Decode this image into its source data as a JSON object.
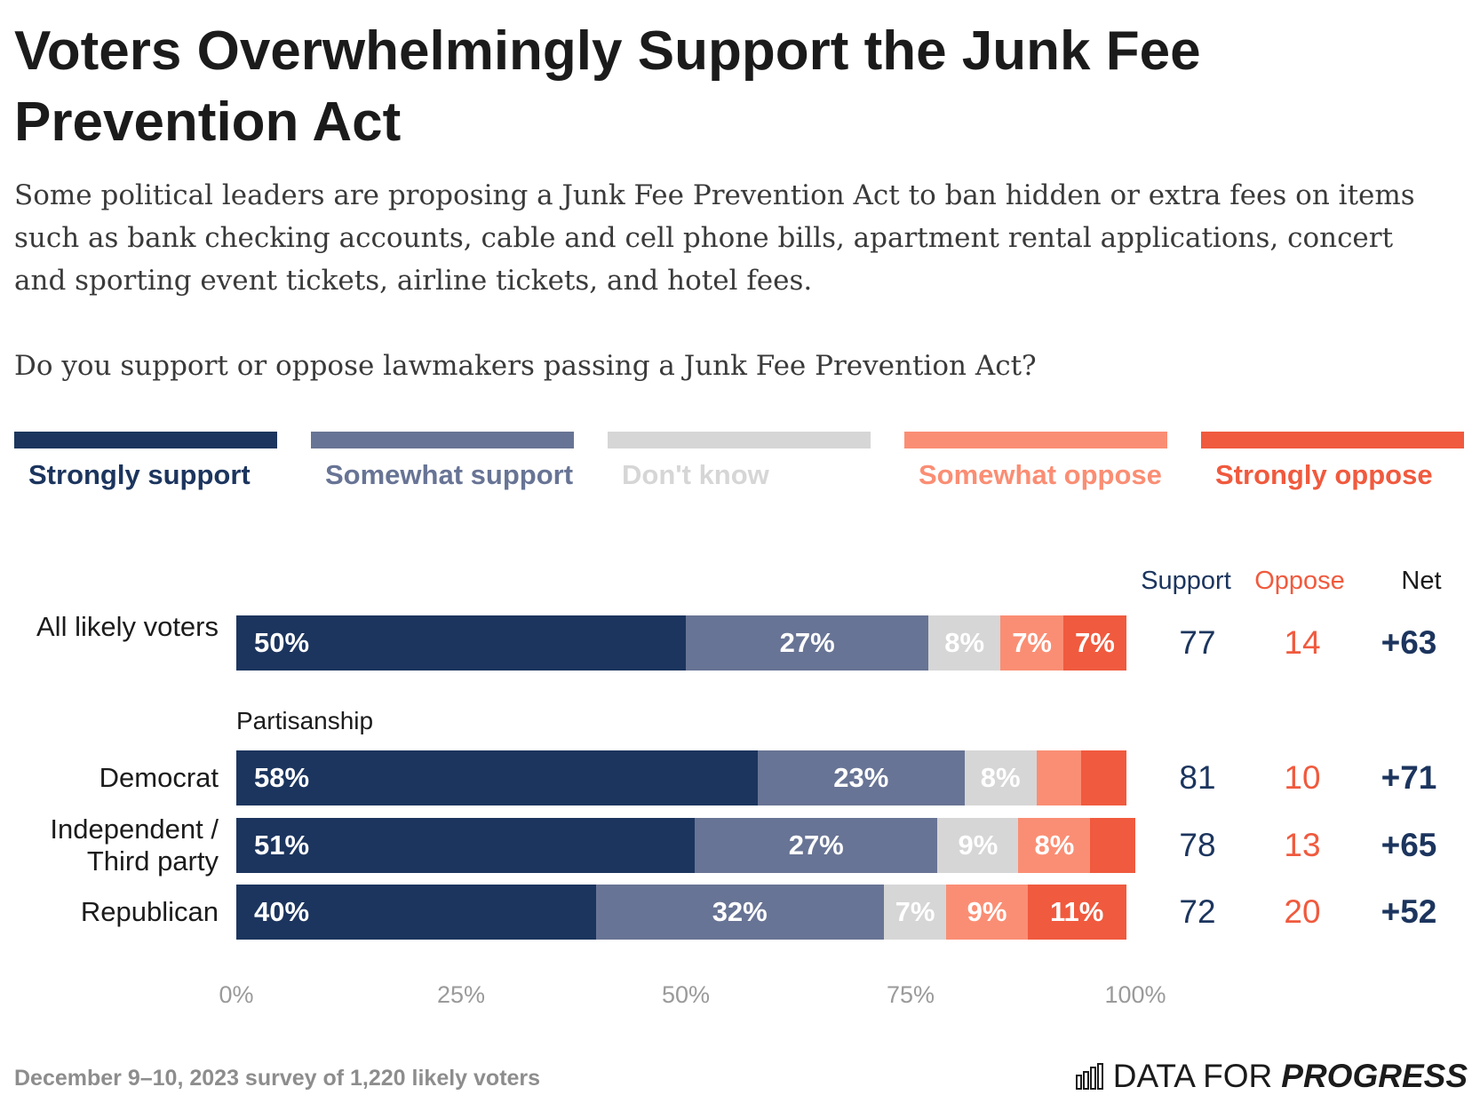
{
  "title": "Voters Overwhelmingly Support the Junk Fee Prevention Act",
  "subtitle": "Some political leaders are proposing a Junk Fee Prevention Act to ban hidden or extra fees on items such as bank checking accounts, cable and cell phone bills, apartment rental applications, concert and sporting event tickets, airline tickets, and hotel fees.",
  "question": "Do you support or oppose lawmakers passing a Junk Fee Prevention Act?",
  "colors": {
    "strongly_support": "#1c355e",
    "somewhat_support": "#687495",
    "dont_know": "#d6d6d6",
    "somewhat_oppose": "#fa8e74",
    "strongly_oppose": "#f05a3e",
    "support_text": "#1c355e",
    "oppose_text": "#f05a3e"
  },
  "summary_headers": {
    "support": "Support",
    "oppose": "Oppose",
    "net": "Net"
  },
  "section_label": "Partisanship",
  "footer": {
    "note": "December 9–10, 2023 survey of 1,220 likely voters",
    "brand_regular": "DATA FOR",
    "brand_strong": "PROGRESS",
    "brand_icon": "bar-chart-icon"
  },
  "chart_data": {
    "type": "bar",
    "orientation": "horizontal",
    "stacked": true,
    "xlim": [
      0,
      100
    ],
    "x_ticks": [
      "0%",
      "25%",
      "50%",
      "75%",
      "100%"
    ],
    "legend_position": "top",
    "categories": [
      "All likely voters",
      "Democrat",
      "Independent / Third party",
      "Republican"
    ],
    "series": [
      {
        "name": "Strongly support",
        "key": "strongly_support",
        "values": [
          50,
          58,
          51,
          40
        ],
        "labels": [
          "50%",
          "58%",
          "51%",
          "40%"
        ]
      },
      {
        "name": "Somewhat support",
        "key": "somewhat_support",
        "values": [
          27,
          23,
          27,
          32
        ],
        "labels": [
          "27%",
          "23%",
          "27%",
          "32%"
        ]
      },
      {
        "name": "Don't know",
        "key": "dont_know",
        "values": [
          8,
          8,
          9,
          7
        ],
        "labels": [
          "8%",
          "8%",
          "9%",
          "7%"
        ]
      },
      {
        "name": "Somewhat oppose",
        "key": "somewhat_oppose",
        "values": [
          7,
          5,
          8,
          9
        ],
        "labels": [
          "7%",
          "",
          "8%",
          "9%"
        ]
      },
      {
        "name": "Strongly oppose",
        "key": "strongly_oppose",
        "values": [
          7,
          5,
          5,
          11
        ],
        "labels": [
          "7%",
          "",
          "",
          "11%"
        ]
      }
    ],
    "summary": [
      {
        "support": "77",
        "oppose": "14",
        "net": "+63"
      },
      {
        "support": "81",
        "oppose": "10",
        "net": "+71"
      },
      {
        "support": "78",
        "oppose": "13",
        "net": "+65"
      },
      {
        "support": "72",
        "oppose": "20",
        "net": "+52"
      }
    ]
  }
}
